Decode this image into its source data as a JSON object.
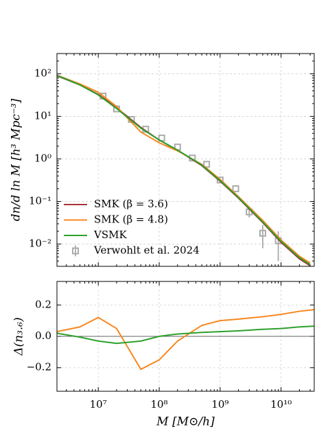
{
  "chart_data": [
    {
      "type": "line",
      "yscale": "log",
      "xscale": "log",
      "grid": true,
      "legend": "lower left",
      "ylabel": "dn/d ln M [h³ Mpc⁻³]",
      "xlim": [
        2100000.0,
        35000000000.0
      ],
      "ylim": [
        0.003,
        300
      ],
      "yticks": [
        {
          "value": 100,
          "label": "10²"
        },
        {
          "value": 10,
          "label": "10¹"
        },
        {
          "value": 1,
          "label": "10⁰"
        },
        {
          "value": 0.1,
          "label": "10⁻¹"
        },
        {
          "value": 0.01,
          "label": "10⁻²"
        }
      ],
      "x": [
        2100000.0,
        5000000.0,
        10000000.0,
        20000000.0,
        50000000.0,
        100000000.0,
        200000000.0,
        500000000.0,
        1000000000.0,
        2000000000.0,
        5000000000.0,
        10000000000.0,
        20000000000.0,
        30000000000.0
      ],
      "series": [
        {
          "name": "SMK (β = 3.6)",
          "color": "#a83236",
          "values": [
            90,
            55,
            33,
            16,
            5.5,
            2.8,
            1.6,
            0.7,
            0.3,
            0.12,
            0.032,
            0.011,
            0.0045,
            0.0031
          ]
        },
        {
          "name": "SMK (β = 4.8)",
          "color": "#f7871f",
          "values": [
            93,
            58,
            37,
            17,
            4.3,
            2.4,
            1.55,
            0.75,
            0.33,
            0.13,
            0.036,
            0.0125,
            0.0052,
            0.0036
          ]
        },
        {
          "name": "VSMK",
          "color": "#2ca02c",
          "values": [
            92,
            55,
            32,
            15.3,
            5.3,
            2.8,
            1.62,
            0.72,
            0.31,
            0.124,
            0.033,
            0.0116,
            0.0048,
            0.0033
          ]
        }
      ],
      "points": {
        "name": "Verwohlt et al. 2024",
        "color": "#aaaaaa",
        "x": [
          12000000.0,
          20000000.0,
          35000000.0,
          60000000.0,
          110000000.0,
          200000000.0,
          350000000.0,
          600000000.0,
          1000000000.0,
          1800000000.0,
          3000000000.0,
          5000000000.0,
          9000000000.0
        ],
        "values": [
          30,
          15,
          8.5,
          5,
          3.1,
          1.9,
          1.05,
          0.75,
          0.32,
          0.2,
          0.057,
          0.018,
          0.012
        ],
        "errors": [
          null,
          null,
          null,
          null,
          null,
          null,
          null,
          null,
          null,
          null,
          0.015,
          0.01,
          0.008
        ]
      }
    },
    {
      "type": "line",
      "xscale": "log",
      "grid": true,
      "ylabel": "Δ(n₃.₆)",
      "xlabel": "M [M⊙/h]",
      "xlim": [
        2100000.0,
        35000000000.0
      ],
      "ylim": [
        -0.35,
        0.35
      ],
      "xticks": [
        {
          "value": 10000000.0,
          "label": "10⁷"
        },
        {
          "value": 100000000.0,
          "label": "10⁸"
        },
        {
          "value": 1000000000.0,
          "label": "10⁹"
        },
        {
          "value": 10000000000.0,
          "label": "10¹⁰"
        }
      ],
      "yticks": [
        0.2,
        {
          "value": 0,
          "label": "0.0"
        },
        {
          "value": -0.2,
          "label": "−0.2"
        }
      ],
      "hline": 0,
      "x": [
        2100000.0,
        5000000.0,
        10000000.0,
        20000000.0,
        50000000.0,
        100000000.0,
        200000000.0,
        500000000.0,
        1000000000.0,
        2000000000.0,
        5000000000.0,
        10000000000.0,
        20000000000.0,
        35000000000.0
      ],
      "series": [
        {
          "color": "#f7871f",
          "values": [
            0.03,
            0.06,
            0.12,
            0.05,
            -0.21,
            -0.15,
            -0.03,
            0.07,
            0.1,
            0.11,
            0.125,
            0.14,
            0.16,
            0.17
          ]
        },
        {
          "color": "#2ca02c",
          "values": [
            0.02,
            -0.005,
            -0.03,
            -0.045,
            -0.03,
            0,
            0.015,
            0.025,
            0.03,
            0.035,
            0.045,
            0.05,
            0.06,
            0.065
          ]
        }
      ]
    }
  ]
}
